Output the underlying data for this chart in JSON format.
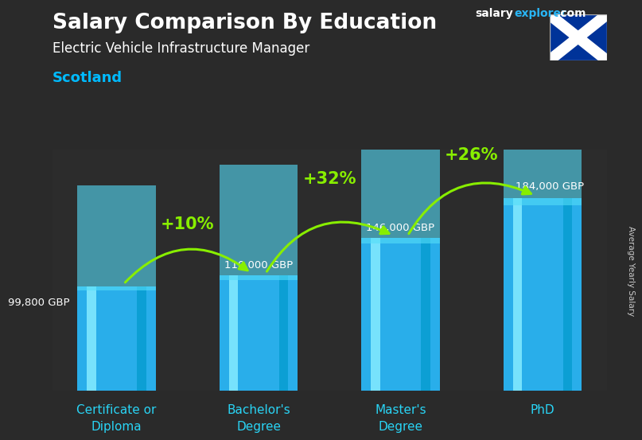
{
  "title_line1": "Salary Comparison By Education",
  "subtitle": "Electric Vehicle Infrastructure Manager",
  "location": "Scotland",
  "watermark_salary": "salary",
  "watermark_explorer": "explorer",
  "watermark_com": ".com",
  "ylabel": "Average Yearly Salary",
  "categories": [
    "Certificate or\nDiploma",
    "Bachelor's\nDegree",
    "Master's\nDegree",
    "PhD"
  ],
  "values": [
    99800,
    110000,
    146000,
    184000
  ],
  "value_labels": [
    "99,800 GBP",
    "110,000 GBP",
    "146,000 GBP",
    "184,000 GBP"
  ],
  "pct_changes": [
    "+10%",
    "+32%",
    "+26%"
  ],
  "bar_color_main": "#29b6f6",
  "bar_color_highlight": "#4dd9f7",
  "bar_color_dark": "#0077aa",
  "title_color": "#ffffff",
  "subtitle_color": "#ffffff",
  "location_color": "#00bbff",
  "watermark_color_salary": "#ffffff",
  "watermark_color_explorer": "#29b6f6",
  "arrow_color": "#88ee00",
  "value_label_color": "#ffffff",
  "xlabel_color": "#29d4f5",
  "ylim": [
    0,
    230000
  ],
  "bar_width": 0.55,
  "bg_color": "#3a3a3a"
}
